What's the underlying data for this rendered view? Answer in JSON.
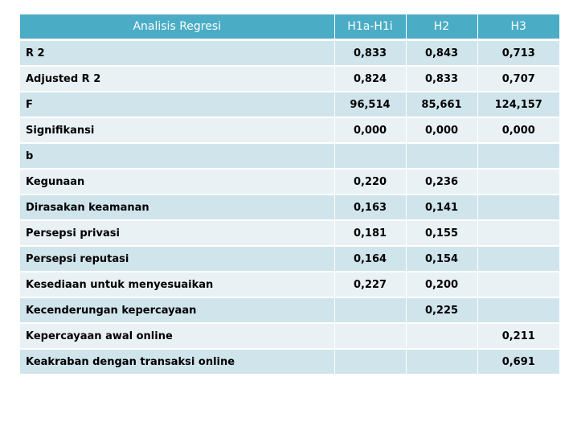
{
  "table": {
    "headers": [
      "Analisis Regresi",
      "H1a-H1i",
      "H2",
      "H3"
    ],
    "rows": [
      {
        "label": "R 2",
        "h1": "0,833",
        "h2": "0,843",
        "h3": "0,713"
      },
      {
        "label": "Adjusted R 2",
        "h1": "0,824",
        "h2": "0,833",
        "h3": "0,707"
      },
      {
        "label": "F",
        "h1": "96,514",
        "h2": "85,661",
        "h3": "124,157"
      },
      {
        "label": "Signifikansi",
        "h1": "0,000",
        "h2": "0,000",
        "h3": "0,000"
      },
      {
        "label": "b",
        "h1": "",
        "h2": "",
        "h3": ""
      },
      {
        "label": "Kegunaan",
        "h1": "0,220",
        "h2": "0,236",
        "h3": ""
      },
      {
        "label": "Dirasakan keamanan",
        "h1": "0,163",
        "h2": "0,141",
        "h3": ""
      },
      {
        "label": "Persepsi privasi",
        "h1": "0,181",
        "h2": "0,155",
        "h3": ""
      },
      {
        "label": "Persepsi reputasi",
        "h1": "0,164",
        "h2": "0,154",
        "h3": ""
      },
      {
        "label": "Kesediaan untuk menyesuaikan",
        "h1": "0,227",
        "h2": "0,200",
        "h3": ""
      },
      {
        "label": "Kecenderungan kepercayaan",
        "h1": "",
        "h2": "0,225",
        "h3": ""
      },
      {
        "label": "Kepercayaan awal online",
        "h1": "",
        "h2": "",
        "h3": "0,211"
      },
      {
        "label": "Keakraban dengan transaksi online",
        "h1": "",
        "h2": "",
        "h3": "0,691"
      }
    ]
  },
  "colors": {
    "header_bg": "#4bacc6",
    "row_dark": "#d0e4ec",
    "row_light": "#e9f1f5"
  }
}
